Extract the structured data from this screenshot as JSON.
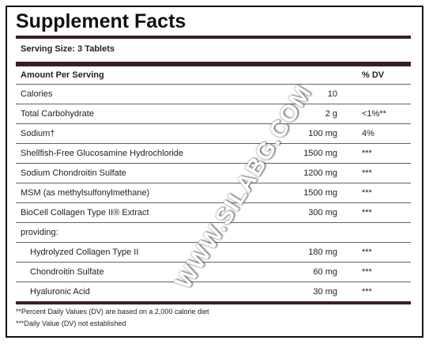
{
  "title": "Supplement Facts",
  "serving_size": "Serving Size: 3 Tablets",
  "table": {
    "header": {
      "amount": "Amount Per Serving",
      "dv": "% DV"
    },
    "rows": [
      {
        "name": "Calories",
        "amount": "10"
      },
      {
        "name": "Total Carbohydrate",
        "amount": "2 g",
        "dv": "<1%**"
      },
      {
        "name": "Sodium†",
        "amount": "100 mg",
        "dv": "4%"
      },
      {
        "name": "Shellfish-Free Glucosamine Hydrochloride",
        "amount": "1500 mg",
        "dv": "***"
      },
      {
        "name": "Sodium Chondroitin Sulfate",
        "amount": "1200 mg",
        "dv": "***"
      },
      {
        "name": "MSM (as methylsulfonylmethane)",
        "amount": "1500 mg",
        "dv": "***"
      },
      {
        "name": "BioCell Collagen Type II® Extract",
        "amount": "300 mg",
        "dv": "***"
      }
    ],
    "group": {
      "label": "providing:",
      "rows": [
        {
          "name": "Hydrolyzed Collagen Type II",
          "amount": "180 mg",
          "dv": "***"
        },
        {
          "name": "Chondroitin Sulfate",
          "amount": "60 mg",
          "dv": "***"
        },
        {
          "name": "Hyaluronic Acid",
          "amount": "30 mg",
          "dv": "***"
        }
      ]
    }
  },
  "footnotes": [
    "**Percent Daily Values (DV) are based on a 2,000 calorie diet",
    "***Daily Value (DV) not established"
  ],
  "watermark": "WWW.SILABG.COM"
}
